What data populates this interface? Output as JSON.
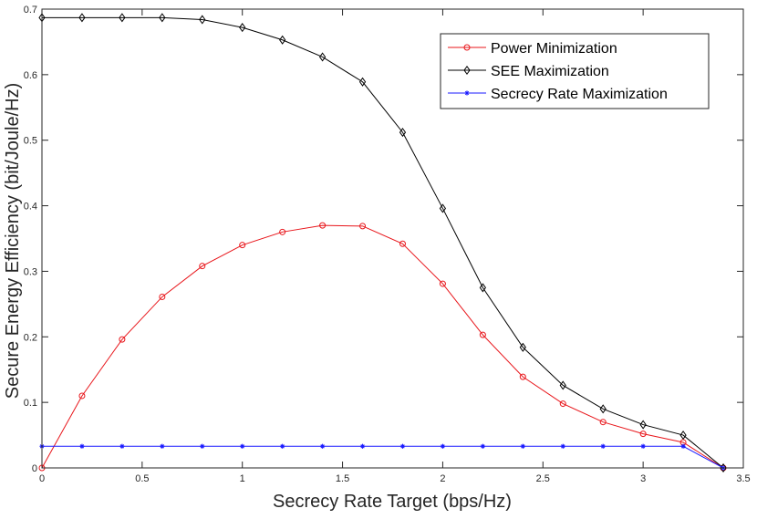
{
  "chart_data": {
    "type": "line",
    "title": "",
    "xlabel": "Secrecy Rate Target (bps/Hz)",
    "ylabel": "Secure Energy Efficiency (bit/Joule/Hz)",
    "xlim": [
      0,
      3.5
    ],
    "ylim": [
      0,
      0.7
    ],
    "xticks": [
      0,
      0.5,
      1,
      1.5,
      2,
      2.5,
      3,
      3.5
    ],
    "xtick_labels": [
      "0",
      "0.5",
      "1",
      "1.5",
      "2",
      "2.5",
      "3",
      "3.5"
    ],
    "yticks": [
      0,
      0.1,
      0.2,
      0.3,
      0.4,
      0.5,
      0.6,
      0.7
    ],
    "ytick_labels": [
      "0",
      "0.1",
      "0.2",
      "0.3",
      "0.4",
      "0.5",
      "0.6",
      "0.7"
    ],
    "grid": false,
    "legend_position": "top-right",
    "x": [
      0,
      0.2,
      0.4,
      0.6,
      0.8,
      1.0,
      1.2,
      1.4,
      1.6,
      1.8,
      2.0,
      2.2,
      2.4,
      2.6,
      2.8,
      3.0,
      3.2,
      3.4
    ],
    "series": [
      {
        "name": "Power Minimization",
        "color": "#e8151a",
        "marker": "circle",
        "values": [
          0.0,
          0.11,
          0.196,
          0.261,
          0.308,
          0.34,
          0.36,
          0.37,
          0.369,
          0.342,
          0.281,
          0.203,
          0.139,
          0.098,
          0.07,
          0.052,
          0.039,
          0.0
        ]
      },
      {
        "name": "SEE Maximization",
        "color": "#000000",
        "marker": "diamond",
        "values": [
          0.687,
          0.687,
          0.687,
          0.687,
          0.684,
          0.672,
          0.653,
          0.627,
          0.589,
          0.512,
          0.396,
          0.275,
          0.184,
          0.126,
          0.09,
          0.066,
          0.05,
          0.0
        ]
      },
      {
        "name": "Secrecy Rate Maximization",
        "color": "#1a1aff",
        "marker": "star",
        "values": [
          0.033,
          0.033,
          0.033,
          0.033,
          0.033,
          0.033,
          0.033,
          0.033,
          0.033,
          0.033,
          0.033,
          0.033,
          0.033,
          0.033,
          0.033,
          0.033,
          0.033,
          0.0
        ]
      }
    ]
  }
}
